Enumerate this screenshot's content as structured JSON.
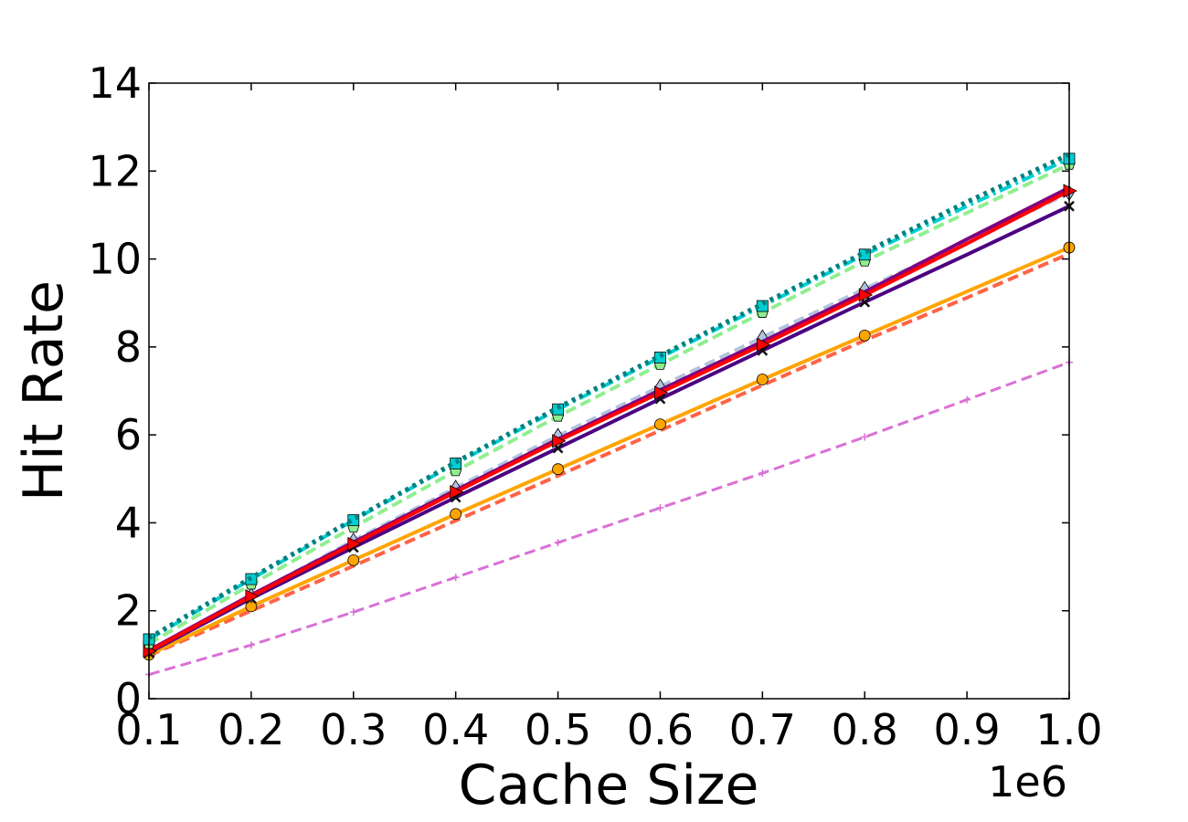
{
  "chart_data": {
    "type": "line",
    "title": "",
    "xlabel": "Cache Size",
    "ylabel": "Hit Rate",
    "x_offset_label": "1e6",
    "x": [
      0.1,
      0.2,
      0.3,
      0.4,
      0.5,
      0.6,
      0.7,
      0.8,
      0.9,
      1.0
    ],
    "xlim": [
      0.1,
      1.0
    ],
    "ylim": [
      0,
      14
    ],
    "xticks": [
      "0.1",
      "0.2",
      "0.3",
      "0.4",
      "0.5",
      "0.6",
      "0.7",
      "0.8",
      "0.9",
      "1.0"
    ],
    "yticks": [
      "0",
      "2",
      "4",
      "6",
      "8",
      "10",
      "12",
      "14"
    ],
    "grid": false,
    "legend": "none",
    "series": [
      {
        "color": "#da70d6",
        "style": "dashed",
        "marker": "plus",
        "width": 3,
        "values": [
          0.55,
          1.22,
          1.97,
          2.76,
          3.55,
          4.34,
          5.13,
          5.95,
          6.8,
          7.65
        ]
      },
      {
        "color": "#ff6347",
        "style": "dashed",
        "marker": "none",
        "width": 4,
        "values": [
          0.98,
          2.0,
          3.02,
          4.05,
          5.07,
          6.1,
          7.13,
          8.15,
          9.12,
          10.12
        ]
      },
      {
        "color": "#ffa500",
        "style": "solid",
        "marker": "circle",
        "width": 4,
        "values": [
          1.0,
          2.1,
          3.15,
          4.2,
          5.22,
          6.24,
          7.26,
          8.26,
          9.26,
          10.26
        ]
      },
      {
        "color": "#b0c4de",
        "style": "dashed",
        "marker": "diamond",
        "width": 4,
        "values": [
          1.1,
          2.35,
          3.6,
          4.8,
          5.98,
          7.1,
          8.22,
          9.32,
          10.4,
          11.5
        ]
      },
      {
        "color": "#4b0082",
        "style": "solid",
        "marker": "x",
        "width": 4,
        "values": [
          1.05,
          2.28,
          3.44,
          4.58,
          5.7,
          6.82,
          7.92,
          9.02,
          10.1,
          11.2
        ]
      },
      {
        "color": "#800080",
        "style": "solid",
        "marker": "none",
        "width": 4,
        "values": [
          1.1,
          2.36,
          3.56,
          4.74,
          5.9,
          7.02,
          8.12,
          9.25,
          10.45,
          11.62
        ]
      },
      {
        "color": "#ff0000",
        "style": "solid",
        "marker": "triangle-right",
        "width": 4,
        "values": [
          1.08,
          2.33,
          3.52,
          4.7,
          5.86,
          6.96,
          8.05,
          9.18,
          10.35,
          11.55
        ]
      },
      {
        "color": "#90ee90",
        "style": "dashed",
        "marker": "pentagon",
        "width": 4,
        "values": [
          1.25,
          2.6,
          3.9,
          5.18,
          6.42,
          7.6,
          8.78,
          9.95,
          11.05,
          12.15
        ]
      },
      {
        "color": "#00ced1",
        "style": "dashdot",
        "marker": "square",
        "width": 4,
        "values": [
          1.35,
          2.72,
          4.06,
          5.35,
          6.58,
          7.76,
          8.93,
          10.1,
          11.2,
          12.28
        ]
      },
      {
        "color": "#008080",
        "style": "dotted",
        "marker": "none",
        "width": 5,
        "values": [
          1.38,
          2.75,
          4.08,
          5.38,
          6.62,
          7.8,
          8.98,
          10.15,
          11.3,
          12.38
        ]
      }
    ]
  }
}
